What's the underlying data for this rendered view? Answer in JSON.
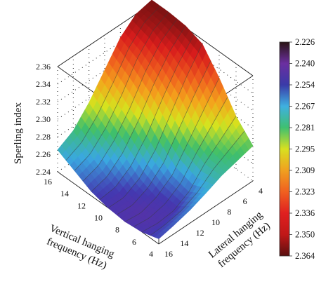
{
  "chart_data": {
    "type": "surface",
    "zlabel": "Sperling index",
    "xlabel": "Vertical hanging frequency (Hz)",
    "xlabel_lines": [
      "Vertical hanging",
      "frequency (Hz)"
    ],
    "ylabel": "Lateral hanging frequency (Hz)",
    "ylabel_lines": [
      "Lateral hanging",
      "frequency (Hz)"
    ],
    "x_ticks": [
      "16",
      "14",
      "12",
      "10",
      "8",
      "6",
      "4"
    ],
    "y_ticks": [
      "16",
      "14",
      "12",
      "10",
      "8",
      "6",
      "4"
    ],
    "z_ticks": [
      "2.24",
      "2.26",
      "2.28",
      "2.30",
      "2.32",
      "2.34",
      "2.36"
    ],
    "xlim": [
      4,
      16
    ],
    "ylim": [
      4,
      16
    ],
    "zlim": [
      2.24,
      2.36
    ],
    "grid": true,
    "colorbar": {
      "labels": [
        "2.226",
        "2.240",
        "2.254",
        "2.267",
        "2.281",
        "2.295",
        "2.309",
        "2.323",
        "2.336",
        "2.350",
        "2.364"
      ],
      "colors": [
        "#2a1414",
        "#6b2fa0",
        "#3a3aa8",
        "#3fb0e0",
        "#3fc070",
        "#d8e020",
        "#f0a020",
        "#f06020",
        "#e02020",
        "#c01818",
        "#5a1010"
      ]
    },
    "surface": {
      "x": [
        4,
        6,
        8,
        10,
        12,
        14,
        16
      ],
      "y": [
        4,
        6,
        8,
        10,
        12,
        14,
        16
      ],
      "z_by_x": [
        [
          2.28,
          2.275,
          2.27,
          2.262,
          2.255,
          2.25,
          2.246
        ],
        [
          2.3,
          2.285,
          2.27,
          2.25,
          2.24,
          2.238,
          2.24
        ],
        [
          2.33,
          2.305,
          2.28,
          2.255,
          2.242,
          2.236,
          2.238
        ],
        [
          2.355,
          2.33,
          2.3,
          2.27,
          2.25,
          2.24,
          2.24
        ],
        [
          2.362,
          2.345,
          2.32,
          2.29,
          2.265,
          2.25,
          2.245
        ],
        [
          2.364,
          2.355,
          2.335,
          2.305,
          2.28,
          2.262,
          2.255
        ],
        [
          2.364,
          2.36,
          2.345,
          2.32,
          2.295,
          2.275,
          2.265
        ]
      ]
    }
  }
}
